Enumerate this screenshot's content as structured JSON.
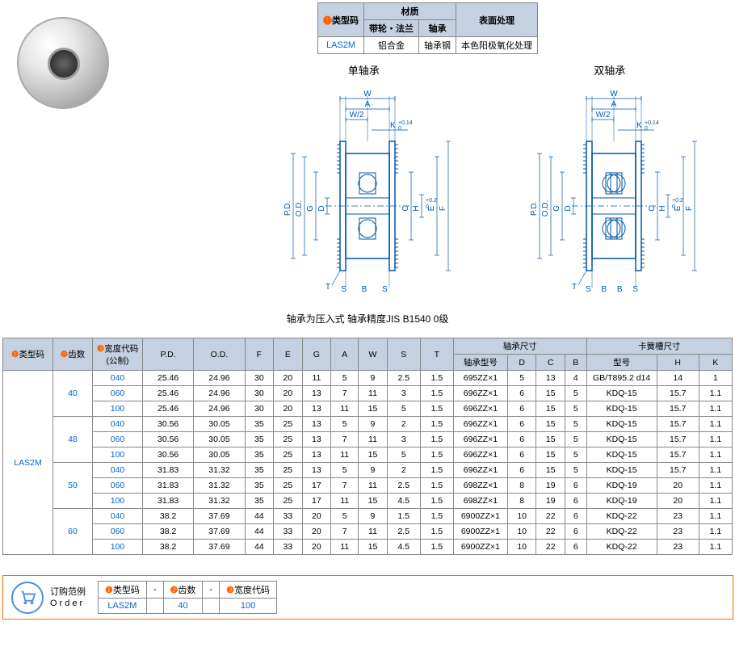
{
  "material_table": {
    "headers": {
      "type_code": "类型码",
      "material": "材质",
      "pulley_flange": "带轮・法兰",
      "bearing": "轴承",
      "surface": "表面处理"
    },
    "row": {
      "code": "LAS2M",
      "pulley_flange": "铝合金",
      "bearing": "轴承钢",
      "surface": "本色阳极氧化处理"
    }
  },
  "num_labels": {
    "n1": "❶",
    "n2": "❷",
    "n3": "❸"
  },
  "diagrams": {
    "single_bearing": "单轴承",
    "double_bearing": "双轴承",
    "dim_labels": {
      "W": "W",
      "A": "A",
      "W2": "W/2",
      "K": "K",
      "SBS": "S B S",
      "SBBS": "S B B S",
      "T": "T",
      "PD": "P.D.",
      "OD": "O.D.",
      "G": "G",
      "D": "D",
      "C": "C",
      "H": "H",
      "E": "E",
      "F": "F"
    },
    "K_tol": "+0.14\n 0",
    "H_tol": "+0.2\n 0"
  },
  "note": "轴承为压入式 轴承精度JIS B1540 0级",
  "main_table": {
    "headers": {
      "type_code": "类型码",
      "teeth": "齿数",
      "width_code": "宽度代码\n(公制)",
      "PD": "P.D.",
      "OD": "O.D.",
      "F": "F",
      "E": "E",
      "G": "G",
      "A": "A",
      "W": "W",
      "S": "S",
      "T": "T",
      "bearing_dim": "轴承尺寸",
      "bearing_type": "轴承型号",
      "D": "D",
      "C": "C",
      "B": "B",
      "snap_dim": "卡簧槽尺寸",
      "snap_type": "型号",
      "H": "H",
      "K": "K"
    },
    "type_code": "LAS2M",
    "teeth_groups": [
      {
        "teeth": "40",
        "rows": [
          {
            "w": "040",
            "pd": "25.46",
            "od": "24.96",
            "f": "30",
            "e": "20",
            "g": "11",
            "a": "5",
            "ww": "9",
            "s": "2.5",
            "t": "1.5",
            "bt": "695ZZ×1",
            "d": "5",
            "c": "13",
            "b": "4",
            "st": "GB/T895.2 d14",
            "h": "14",
            "k": "1"
          },
          {
            "w": "060",
            "pd": "25.46",
            "od": "24.96",
            "f": "30",
            "e": "20",
            "g": "13",
            "a": "7",
            "ww": "11",
            "s": "3",
            "t": "1.5",
            "bt": "696ZZ×1",
            "d": "6",
            "c": "15",
            "b": "5",
            "st": "KDQ-15",
            "h": "15.7",
            "k": "1.1"
          },
          {
            "w": "100",
            "pd": "25.46",
            "od": "24.96",
            "f": "30",
            "e": "20",
            "g": "13",
            "a": "11",
            "ww": "15",
            "s": "5",
            "t": "1.5",
            "bt": "696ZZ×1",
            "d": "6",
            "c": "15",
            "b": "5",
            "st": "KDQ-15",
            "h": "15.7",
            "k": "1.1"
          }
        ]
      },
      {
        "teeth": "48",
        "rows": [
          {
            "w": "040",
            "pd": "30.56",
            "od": "30.05",
            "f": "35",
            "e": "25",
            "g": "13",
            "a": "5",
            "ww": "9",
            "s": "2",
            "t": "1.5",
            "bt": "696ZZ×1",
            "d": "6",
            "c": "15",
            "b": "5",
            "st": "KDQ-15",
            "h": "15.7",
            "k": "1.1"
          },
          {
            "w": "060",
            "pd": "30.56",
            "od": "30.05",
            "f": "35",
            "e": "25",
            "g": "13",
            "a": "7",
            "ww": "11",
            "s": "3",
            "t": "1.5",
            "bt": "696ZZ×1",
            "d": "6",
            "c": "15",
            "b": "5",
            "st": "KDQ-15",
            "h": "15.7",
            "k": "1.1"
          },
          {
            "w": "100",
            "pd": "30.56",
            "od": "30.05",
            "f": "35",
            "e": "25",
            "g": "13",
            "a": "11",
            "ww": "15",
            "s": "5",
            "t": "1.5",
            "bt": "696ZZ×1",
            "d": "6",
            "c": "15",
            "b": "5",
            "st": "KDQ-15",
            "h": "15.7",
            "k": "1.1"
          }
        ]
      },
      {
        "teeth": "50",
        "rows": [
          {
            "w": "040",
            "pd": "31.83",
            "od": "31.32",
            "f": "35",
            "e": "25",
            "g": "13",
            "a": "5",
            "ww": "9",
            "s": "2",
            "t": "1.5",
            "bt": "696ZZ×1",
            "d": "6",
            "c": "15",
            "b": "5",
            "st": "KDQ-15",
            "h": "15.7",
            "k": "1.1"
          },
          {
            "w": "060",
            "pd": "31.83",
            "od": "31.32",
            "f": "35",
            "e": "25",
            "g": "17",
            "a": "7",
            "ww": "11",
            "s": "2.5",
            "t": "1.5",
            "bt": "698ZZ×1",
            "d": "8",
            "c": "19",
            "b": "6",
            "st": "KDQ-19",
            "h": "20",
            "k": "1.1"
          },
          {
            "w": "100",
            "pd": "31.83",
            "od": "31.32",
            "f": "35",
            "e": "25",
            "g": "17",
            "a": "11",
            "ww": "15",
            "s": "4.5",
            "t": "1.5",
            "bt": "698ZZ×1",
            "d": "8",
            "c": "19",
            "b": "6",
            "st": "KDQ-19",
            "h": "20",
            "k": "1.1"
          }
        ]
      },
      {
        "teeth": "60",
        "rows": [
          {
            "w": "040",
            "pd": "38.2",
            "od": "37.69",
            "f": "44",
            "e": "33",
            "g": "20",
            "a": "5",
            "ww": "9",
            "s": "1.5",
            "t": "1.5",
            "bt": "6900ZZ×1",
            "d": "10",
            "c": "22",
            "b": "6",
            "st": "KDQ-22",
            "h": "23",
            "k": "1.1"
          },
          {
            "w": "060",
            "pd": "38.2",
            "od": "37.69",
            "f": "44",
            "e": "33",
            "g": "20",
            "a": "7",
            "ww": "11",
            "s": "2.5",
            "t": "1.5",
            "bt": "6900ZZ×1",
            "d": "10",
            "c": "22",
            "b": "6",
            "st": "KDQ-22",
            "h": "23",
            "k": "1.1"
          },
          {
            "w": "100",
            "pd": "38.2",
            "od": "37.69",
            "f": "44",
            "e": "33",
            "g": "20",
            "a": "11",
            "ww": "15",
            "s": "4.5",
            "t": "1.5",
            "bt": "6900ZZ×1",
            "d": "10",
            "c": "22",
            "b": "6",
            "st": "KDQ-22",
            "h": "23",
            "k": "1.1"
          }
        ]
      }
    ]
  },
  "order": {
    "title": "订购范例",
    "subtitle": "Order",
    "dash": "-",
    "labels": {
      "type_code": "类型码",
      "teeth": "齿数",
      "width": "宽度代码"
    },
    "values": {
      "type_code": "LAS2M",
      "teeth": "40",
      "width": "100"
    }
  },
  "colors": {
    "header_bg": "#c5d1e0",
    "border": "#888888",
    "accent": "#ff6600",
    "link": "#0066cc",
    "diagram": "#0055aa"
  }
}
